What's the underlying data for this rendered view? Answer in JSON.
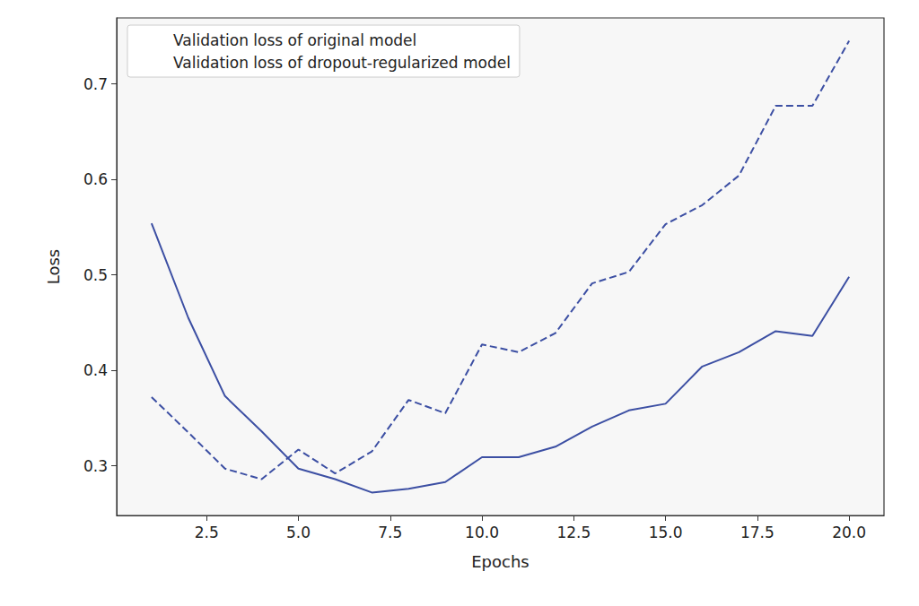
{
  "chart_data": {
    "type": "line",
    "x_label": "Epochs",
    "y_label": "Loss",
    "x": [
      1,
      2,
      3,
      4,
      5,
      6,
      7,
      8,
      9,
      10,
      11,
      12,
      13,
      14,
      15,
      16,
      17,
      18,
      19,
      20
    ],
    "series": [
      {
        "name": "Validation loss of original model",
        "color": "#3c4fa3",
        "line_style": "dashed",
        "values": [
          0.372,
          0.335,
          0.297,
          0.286,
          0.317,
          0.292,
          0.315,
          0.369,
          0.355,
          0.427,
          0.419,
          0.439,
          0.491,
          0.503,
          0.553,
          0.573,
          0.604,
          0.677,
          0.677,
          0.745
        ]
      },
      {
        "name": "Validation loss of dropout-regularized model",
        "color": "#3c4fa3",
        "line_style": "solid",
        "values": [
          0.554,
          0.455,
          0.373,
          0.336,
          0.297,
          0.286,
          0.272,
          0.276,
          0.283,
          0.309,
          0.309,
          0.32,
          0.341,
          0.358,
          0.365,
          0.404,
          0.419,
          0.441,
          0.436,
          0.498
        ]
      }
    ],
    "xlim": [
      0.05,
      20.95
    ],
    "xticks": [
      2.5,
      {
        "value": 5,
        "label": "5.0"
      },
      7.5,
      {
        "value": 10,
        "label": "10.0"
      },
      12.5,
      {
        "value": 15,
        "label": "15.0"
      },
      17.5,
      {
        "value": 20,
        "label": "20.0"
      }
    ],
    "ylim": [
      0.248,
      0.769
    ],
    "yticks": [
      0.3,
      0.4,
      0.5,
      0.6,
      0.7
    ],
    "grid": false,
    "legend": "upper left"
  }
}
